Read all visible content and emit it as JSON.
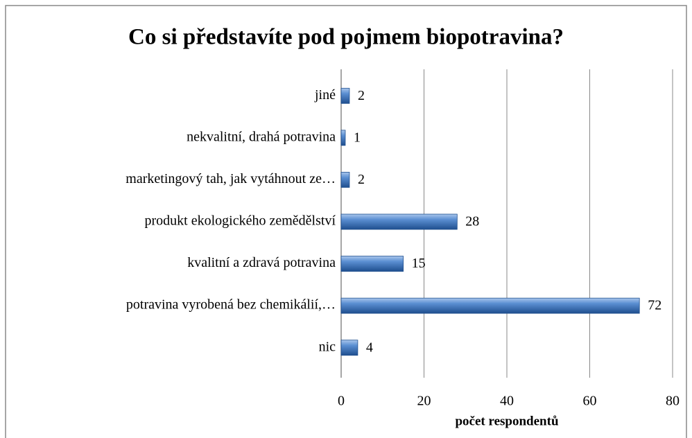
{
  "chart_data": {
    "type": "bar",
    "orientation": "horizontal",
    "title": "Co si představíte pod pojmem biopotravina?",
    "x_label": "počet respondentů",
    "categories": [
      "jiné",
      "nekvalitní, drahá potravina",
      "marketingový tah, jak vytáhnout ze…",
      "produkt ekologického zemědělství",
      "kvalitní a zdravá potravina",
      "potravina vyrobená bez chemikálií,…",
      "nic"
    ],
    "values": [
      2,
      1,
      2,
      28,
      15,
      72,
      4
    ],
    "color": "#3f76bd",
    "xlim": [
      0,
      80
    ],
    "xticks": [
      0,
      20,
      40,
      60,
      80
    ],
    "grid": true
  }
}
